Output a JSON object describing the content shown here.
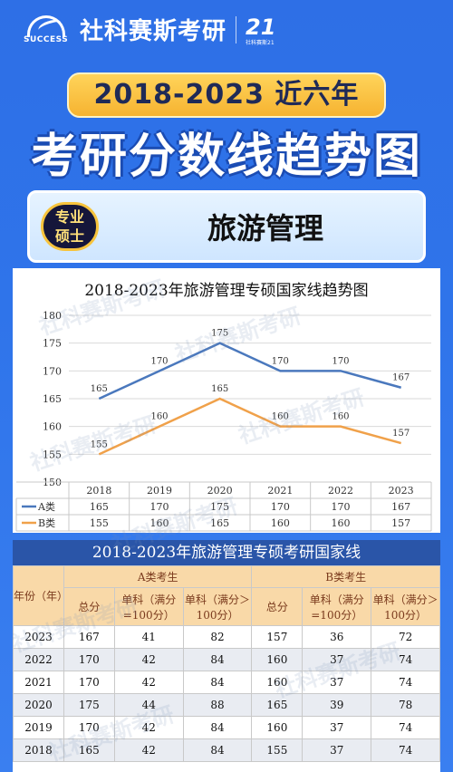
{
  "brand": {
    "en": "SUCCESS",
    "cn": "社科赛斯考研",
    "logo_num": "21",
    "logo_text": "社科赛斯21"
  },
  "header": {
    "years": "2018-2023 近六年",
    "title": "考研分数线趋势图"
  },
  "subject": {
    "badge_line1": "专业",
    "badge_line2": "硕士",
    "name": "旅游管理"
  },
  "watermark": {
    "cn": "社科赛斯考研",
    "en": "SUCCESS"
  },
  "colors": {
    "series_a": "#4a78bd",
    "series_b": "#f0a14a",
    "table_head_bg": "#f9d9a8",
    "table_title_bg": "#2a55a8"
  },
  "chart_data": {
    "type": "line",
    "title": "2018-2023年旅游管理专硕国家线趋势图",
    "categories": [
      "2018",
      "2019",
      "2020",
      "2021",
      "2022",
      "2023"
    ],
    "series": [
      {
        "name": "A类",
        "values": [
          165,
          170,
          175,
          170,
          170,
          167
        ]
      },
      {
        "name": "B类",
        "values": [
          155,
          160,
          165,
          160,
          160,
          157
        ]
      }
    ],
    "ylim": [
      150,
      180
    ],
    "yticks": [
      "150",
      "155",
      "160",
      "165",
      "170",
      "175",
      "180"
    ],
    "grid": true,
    "legend": "bottom data table"
  },
  "table": {
    "title": "2018-2023年旅游管理专硕考研国家线",
    "year_header": "年份（年）",
    "group_a": "A类考生",
    "group_b": "B类考生",
    "col_total": "总分",
    "col_single_100": "单科（满分=100分）",
    "col_single_over100": "单科（满分＞100分）",
    "rows": [
      {
        "year": "2023",
        "a_total": "167",
        "a_s100": "41",
        "a_s150": "82",
        "b_total": "157",
        "b_s100": "36",
        "b_s150": "72"
      },
      {
        "year": "2022",
        "a_total": "170",
        "a_s100": "42",
        "a_s150": "84",
        "b_total": "160",
        "b_s100": "37",
        "b_s150": "74"
      },
      {
        "year": "2021",
        "a_total": "170",
        "a_s100": "42",
        "a_s150": "84",
        "b_total": "160",
        "b_s100": "37",
        "b_s150": "74"
      },
      {
        "year": "2020",
        "a_total": "175",
        "a_s100": "44",
        "a_s150": "88",
        "b_total": "165",
        "b_s100": "39",
        "b_s150": "78"
      },
      {
        "year": "2019",
        "a_total": "170",
        "a_s100": "42",
        "a_s150": "84",
        "b_total": "160",
        "b_s100": "37",
        "b_s150": "74"
      },
      {
        "year": "2018",
        "a_total": "165",
        "a_s100": "42",
        "a_s150": "84",
        "b_total": "155",
        "b_s100": "37",
        "b_s150": "74"
      }
    ]
  }
}
